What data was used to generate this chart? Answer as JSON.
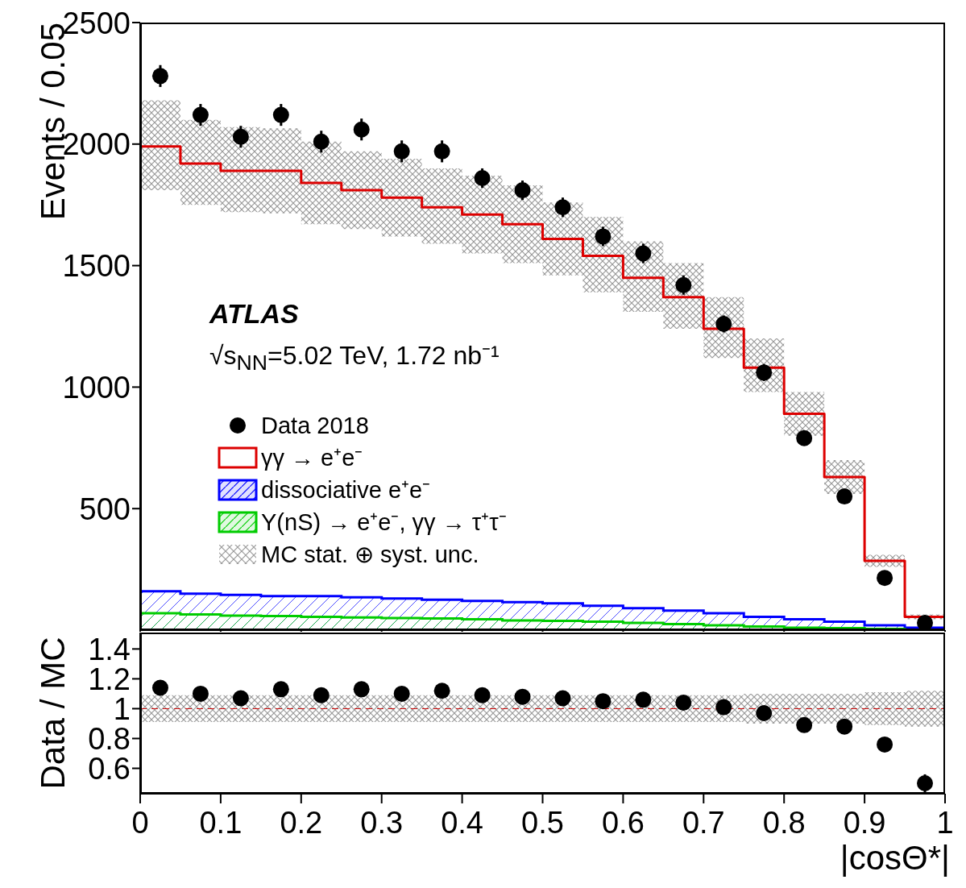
{
  "chart_data": [
    {
      "type": "step",
      "ylabel": "Events / 0.05",
      "tick_labels": "y",
      "annotations": [
        "ATLAS",
        "√s$_{NN}$=5.02 TeV, 1.72 nb⁻¹",
        "MC stat. ⊕ syst. unc."
      ],
      "xlim": [
        0,
        1
      ],
      "xticks": [
        0,
        0.1,
        0.2,
        0.3,
        0.4,
        0.5,
        0.6,
        0.7,
        0.8,
        0.9,
        1
      ],
      "ylim": [
        0,
        2500
      ],
      "yticks": [
        500,
        1000,
        1500,
        2000,
        2500
      ],
      "legend": "left",
      "series": [
        {
          "type": "area",
          "name": "dissociative e⁺e⁻",
          "color": "#0000ff",
          "x": [
            0,
            0.05,
            0.1,
            0.15,
            0.2,
            0.25,
            0.3,
            0.35,
            0.4,
            0.45,
            0.5,
            0.55,
            0.6,
            0.65,
            0.7,
            0.75,
            0.8,
            0.85,
            0.9,
            0.95,
            1
          ],
          "values": [
            160,
            150,
            145,
            140,
            140,
            135,
            130,
            125,
            120,
            115,
            110,
            100,
            90,
            80,
            70,
            55,
            45,
            35,
            20,
            10,
            10
          ]
        },
        {
          "type": "area",
          "name": "Υ(nS) → e⁺e⁻, γγ → τ⁺τ⁻",
          "color": "#00cc00",
          "x": [
            0,
            0.05,
            0.1,
            0.15,
            0.2,
            0.25,
            0.3,
            0.35,
            0.4,
            0.45,
            0.5,
            0.55,
            0.6,
            0.65,
            0.7,
            0.75,
            0.8,
            0.85,
            0.9,
            0.95,
            1
          ],
          "values": [
            70,
            65,
            60,
            58,
            55,
            52,
            50,
            48,
            45,
            40,
            38,
            35,
            30,
            25,
            20,
            15,
            10,
            8,
            5,
            2,
            2
          ]
        },
        {
          "name": "γγ → e⁺e⁻",
          "color": "#dd0000",
          "line_style": "solid",
          "x": [
            0,
            0.05,
            0.1,
            0.15,
            0.2,
            0.25,
            0.3,
            0.35,
            0.4,
            0.45,
            0.5,
            0.55,
            0.6,
            0.65,
            0.7,
            0.75,
            0.8,
            0.85,
            0.9,
            0.95,
            1
          ],
          "values": [
            1990,
            1920,
            1890,
            1890,
            1840,
            1810,
            1780,
            1740,
            1710,
            1670,
            1610,
            1540,
            1450,
            1370,
            1240,
            1080,
            890,
            630,
            285,
            55,
            55
          ],
          "upper": [
            2180,
            2100,
            2070,
            2065,
            2010,
            1970,
            1940,
            1900,
            1870,
            1830,
            1760,
            1700,
            1600,
            1510,
            1370,
            1200,
            980,
            700,
            310,
            65,
            65
          ],
          "lower": [
            1810,
            1750,
            1720,
            1715,
            1670,
            1650,
            1620,
            1590,
            1550,
            1510,
            1460,
            1390,
            1310,
            1240,
            1120,
            980,
            800,
            560,
            260,
            45,
            45
          ]
        },
        {
          "type": "scatter",
          "name": "Data 2018",
          "color": "#000000",
          "marker": "circle",
          "x": [
            0.025,
            0.075,
            0.125,
            0.175,
            0.225,
            0.275,
            0.325,
            0.375,
            0.425,
            0.475,
            0.525,
            0.575,
            0.625,
            0.675,
            0.725,
            0.775,
            0.825,
            0.875,
            0.925,
            0.975
          ],
          "values": [
            2280,
            2120,
            2030,
            2120,
            2010,
            2060,
            1970,
            1970,
            1860,
            1810,
            1740,
            1620,
            1550,
            1420,
            1260,
            1060,
            790,
            550,
            215,
            30
          ],
          "errors": [
            45,
            45,
            45,
            45,
            45,
            45,
            45,
            45,
            40,
            40,
            40,
            40,
            40,
            40,
            35,
            35,
            30,
            25,
            15,
            10
          ]
        }
      ]
    },
    {
      "type": "scatter",
      "ylabel": "Data / MC",
      "xlabel": "|cosΘ*|",
      "xlim": [
        0,
        1
      ],
      "xticks": [
        0,
        0.1,
        0.2,
        0.3,
        0.4,
        0.5,
        0.6,
        0.7,
        0.8,
        0.9,
        1
      ],
      "ylim": [
        0.43,
        1.51
      ],
      "yticks": [
        0.6,
        0.8,
        1,
        1.2,
        1.4
      ],
      "series": [
        {
          "type": "step",
          "color": "#cc0000",
          "line_style": "dashed",
          "x": [
            0,
            0.05,
            0.1,
            0.15,
            0.2,
            0.25,
            0.3,
            0.35,
            0.4,
            0.45,
            0.5,
            0.55,
            0.6,
            0.65,
            0.7,
            0.75,
            0.8,
            0.85,
            0.9,
            0.95,
            1
          ],
          "values": [
            1,
            1,
            1,
            1,
            1,
            1,
            1,
            1,
            1,
            1,
            1,
            1,
            1,
            1,
            1,
            1,
            1,
            1,
            1,
            1,
            1
          ],
          "upper": [
            1.09,
            1.09,
            1.09,
            1.09,
            1.09,
            1.09,
            1.09,
            1.09,
            1.09,
            1.09,
            1.09,
            1.09,
            1.09,
            1.09,
            1.09,
            1.1,
            1.1,
            1.1,
            1.11,
            1.12,
            1.12
          ],
          "lower": [
            0.91,
            0.91,
            0.91,
            0.91,
            0.91,
            0.91,
            0.91,
            0.91,
            0.91,
            0.91,
            0.91,
            0.91,
            0.91,
            0.91,
            0.91,
            0.9,
            0.9,
            0.9,
            0.89,
            0.88,
            0.88
          ]
        },
        {
          "color": "#000000",
          "marker": "circle",
          "x": [
            0.025,
            0.075,
            0.125,
            0.175,
            0.225,
            0.275,
            0.325,
            0.375,
            0.425,
            0.475,
            0.525,
            0.575,
            0.625,
            0.675,
            0.725,
            0.775,
            0.825,
            0.875,
            0.925,
            0.975
          ],
          "values": [
            1.14,
            1.1,
            1.07,
            1.13,
            1.09,
            1.13,
            1.1,
            1.12,
            1.09,
            1.08,
            1.07,
            1.05,
            1.06,
            1.04,
            1.01,
            0.97,
            0.89,
            0.88,
            0.76,
            0.5
          ],
          "errors": [
            0.02,
            0.02,
            0.02,
            0.02,
            0.02,
            0.02,
            0.02,
            0.02,
            0.02,
            0.02,
            0.02,
            0.02,
            0.02,
            0.02,
            0.02,
            0.02,
            0.02,
            0.03,
            0.03,
            0.06
          ]
        }
      ]
    }
  ]
}
